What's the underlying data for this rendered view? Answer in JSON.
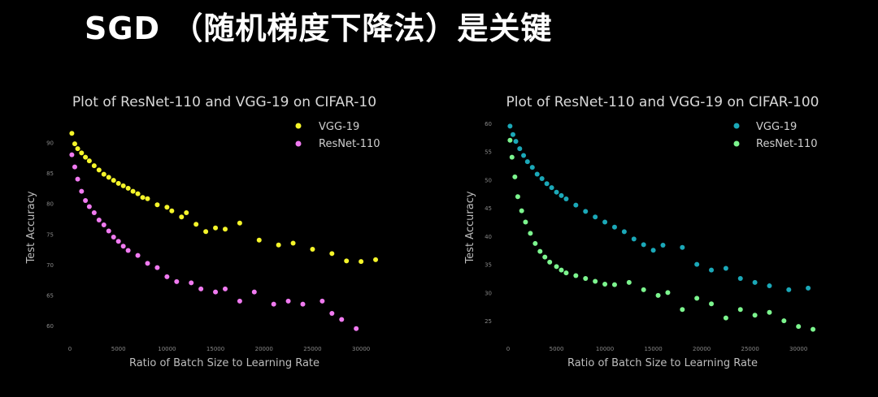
{
  "slide_title": "SGD （随机梯度下降法）是关键",
  "chart_data": [
    {
      "type": "scatter",
      "title": "Plot of ResNet-110 and VGG-19 on CIFAR-10",
      "xlabel": "Ratio of Batch Size to Learning Rate",
      "ylabel": "Test Accuracy",
      "xlim": [
        0,
        32000
      ],
      "ylim": [
        58,
        95
      ],
      "xticks": [
        "0",
        "5000",
        "10000",
        "15000",
        "20000",
        "25000",
        "30000"
      ],
      "yticks": [
        "60",
        "65",
        "70",
        "75",
        "80",
        "85",
        "90"
      ],
      "legend_position": "top-right",
      "grid": false,
      "series": [
        {
          "name": "VGG-19",
          "color": "#f5f52a",
          "points": [
            [
              200,
              91.5
            ],
            [
              500,
              89.8
            ],
            [
              800,
              89.0
            ],
            [
              1200,
              88.3
            ],
            [
              1600,
              87.6
            ],
            [
              2000,
              87.0
            ],
            [
              2500,
              86.2
            ],
            [
              3000,
              85.5
            ],
            [
              3500,
              84.8
            ],
            [
              4000,
              84.3
            ],
            [
              4500,
              83.8
            ],
            [
              5000,
              83.3
            ],
            [
              5500,
              82.9
            ],
            [
              6000,
              82.5
            ],
            [
              6500,
              82.0
            ],
            [
              7000,
              81.6
            ],
            [
              7500,
              81.0
            ],
            [
              8000,
              80.8
            ],
            [
              9000,
              79.8
            ],
            [
              10000,
              79.4
            ],
            [
              10500,
              78.8
            ],
            [
              11500,
              77.8
            ],
            [
              12000,
              78.5
            ],
            [
              13000,
              76.6
            ],
            [
              14000,
              75.4
            ],
            [
              15000,
              76.0
            ],
            [
              16000,
              75.8
            ],
            [
              17500,
              76.8
            ],
            [
              19500,
              74.0
            ],
            [
              21500,
              73.2
            ],
            [
              23000,
              73.5
            ],
            [
              25000,
              72.5
            ],
            [
              27000,
              71.8
            ],
            [
              28500,
              70.6
            ],
            [
              30000,
              70.5
            ],
            [
              31500,
              70.8
            ]
          ]
        },
        {
          "name": "ResNet-110",
          "color": "#f07af0",
          "points": [
            [
              200,
              88.0
            ],
            [
              500,
              86.0
            ],
            [
              800,
              84.0
            ],
            [
              1200,
              82.0
            ],
            [
              1600,
              80.5
            ],
            [
              2000,
              79.5
            ],
            [
              2500,
              78.5
            ],
            [
              3000,
              77.3
            ],
            [
              3500,
              76.5
            ],
            [
              4000,
              75.5
            ],
            [
              4500,
              74.5
            ],
            [
              5000,
              73.8
            ],
            [
              5500,
              73.0
            ],
            [
              6000,
              72.3
            ],
            [
              7000,
              71.5
            ],
            [
              8000,
              70.2
            ],
            [
              9000,
              69.5
            ],
            [
              10000,
              68.0
            ],
            [
              11000,
              67.2
            ],
            [
              12500,
              67.0
            ],
            [
              13500,
              66.0
            ],
            [
              15000,
              65.5
            ],
            [
              16000,
              66.0
            ],
            [
              17500,
              64.0
            ],
            [
              19000,
              65.5
            ],
            [
              21000,
              63.5
            ],
            [
              22500,
              64.0
            ],
            [
              24000,
              63.5
            ],
            [
              26000,
              64.0
            ],
            [
              27000,
              62.0
            ],
            [
              28000,
              61.0
            ],
            [
              29500,
              59.5
            ]
          ]
        }
      ]
    },
    {
      "type": "scatter",
      "title": "Plot of ResNet-110 and VGG-19 on CIFAR-100",
      "xlabel": "Ratio of Batch Size to Learning Rate",
      "ylabel": "Test Accuracy",
      "xlim": [
        0,
        32000
      ],
      "ylim": [
        22,
        62
      ],
      "xticks": [
        "0",
        "5000",
        "10000",
        "15000",
        "20000",
        "25000",
        "30000"
      ],
      "yticks": [
        "25",
        "30",
        "35",
        "40",
        "45",
        "50",
        "55",
        "60"
      ],
      "legend_position": "top-right",
      "grid": false,
      "series": [
        {
          "name": "VGG-19",
          "color": "#1ba8b8",
          "points": [
            [
              200,
              59.5
            ],
            [
              500,
              58.0
            ],
            [
              800,
              56.8
            ],
            [
              1200,
              55.5
            ],
            [
              1600,
              54.3
            ],
            [
              2000,
              53.2
            ],
            [
              2500,
              52.2
            ],
            [
              3000,
              51.0
            ],
            [
              3500,
              50.2
            ],
            [
              4000,
              49.3
            ],
            [
              4500,
              48.6
            ],
            [
              5000,
              47.8
            ],
            [
              5500,
              47.2
            ],
            [
              6000,
              46.6
            ],
            [
              7000,
              45.5
            ],
            [
              8000,
              44.4
            ],
            [
              9000,
              43.4
            ],
            [
              10000,
              42.5
            ],
            [
              11000,
              41.6
            ],
            [
              12000,
              40.8
            ],
            [
              13000,
              39.5
            ],
            [
              14000,
              38.5
            ],
            [
              15000,
              37.5
            ],
            [
              16000,
              38.4
            ],
            [
              18000,
              38.0
            ],
            [
              19500,
              35.0
            ],
            [
              21000,
              34.0
            ],
            [
              22500,
              34.3
            ],
            [
              24000,
              32.5
            ],
            [
              25500,
              31.8
            ],
            [
              27000,
              31.2
            ],
            [
              29000,
              30.5
            ],
            [
              31000,
              30.8
            ]
          ]
        },
        {
          "name": "ResNet-110",
          "color": "#7cf58e",
          "points": [
            [
              200,
              57.0
            ],
            [
              400,
              54.0
            ],
            [
              700,
              50.5
            ],
            [
              1000,
              47.0
            ],
            [
              1400,
              44.5
            ],
            [
              1800,
              42.5
            ],
            [
              2300,
              40.5
            ],
            [
              2800,
              38.7
            ],
            [
              3300,
              37.3
            ],
            [
              3800,
              36.3
            ],
            [
              4300,
              35.4
            ],
            [
              5000,
              34.6
            ],
            [
              5500,
              34.0
            ],
            [
              6000,
              33.5
            ],
            [
              7000,
              33.0
            ],
            [
              8000,
              32.5
            ],
            [
              9000,
              32.0
            ],
            [
              10000,
              31.5
            ],
            [
              11000,
              31.4
            ],
            [
              12500,
              31.8
            ],
            [
              14000,
              30.5
            ],
            [
              15500,
              29.5
            ],
            [
              16500,
              30.0
            ],
            [
              18000,
              27.0
            ],
            [
              19500,
              29.0
            ],
            [
              21000,
              28.0
            ],
            [
              22500,
              25.5
            ],
            [
              24000,
              27.0
            ],
            [
              25500,
              26.0
            ],
            [
              27000,
              26.5
            ],
            [
              28500,
              25.0
            ],
            [
              30000,
              24.0
            ],
            [
              31500,
              23.5
            ]
          ]
        }
      ]
    }
  ]
}
